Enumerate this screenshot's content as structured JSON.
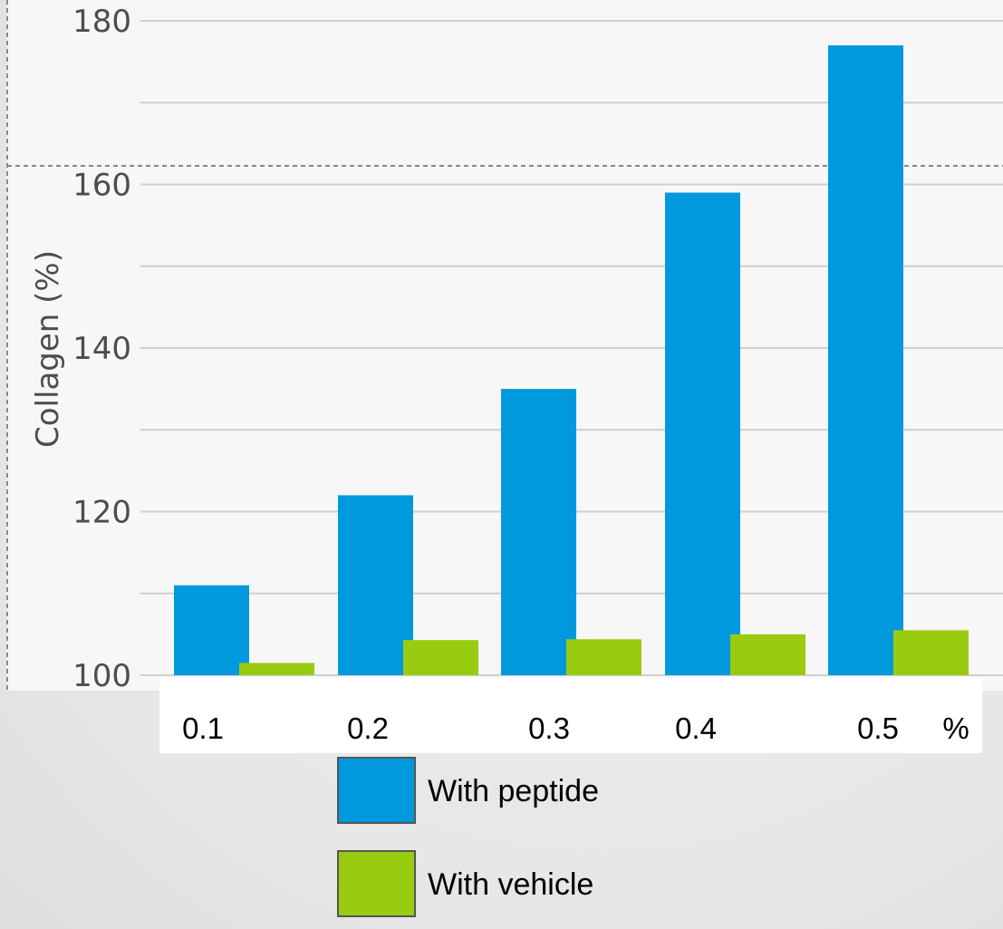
{
  "colors": {
    "peptide": "#0099dd",
    "vehicle": "#99cc11",
    "grid": "#cfcfcf",
    "plot_bg": "#f7f7f7"
  },
  "chart_data": {
    "type": "bar",
    "title": "",
    "ylabel": "Collagen (%)",
    "xlabel": "",
    "x_unit_label": "%",
    "categories": [
      "0.1",
      "0.2",
      "0.3",
      "0.4",
      "0.5"
    ],
    "ylim": [
      100,
      180
    ],
    "yticks": [
      "100",
      "120",
      "140",
      "160",
      "180"
    ],
    "grid": true,
    "legend_position": "bottom-center",
    "series": [
      {
        "name": "With peptide",
        "values": [
          111,
          122,
          135,
          159,
          177
        ]
      },
      {
        "name": "With vehicle",
        "values": [
          101.5,
          104.3,
          104.4,
          105,
          105.5
        ]
      }
    ]
  }
}
